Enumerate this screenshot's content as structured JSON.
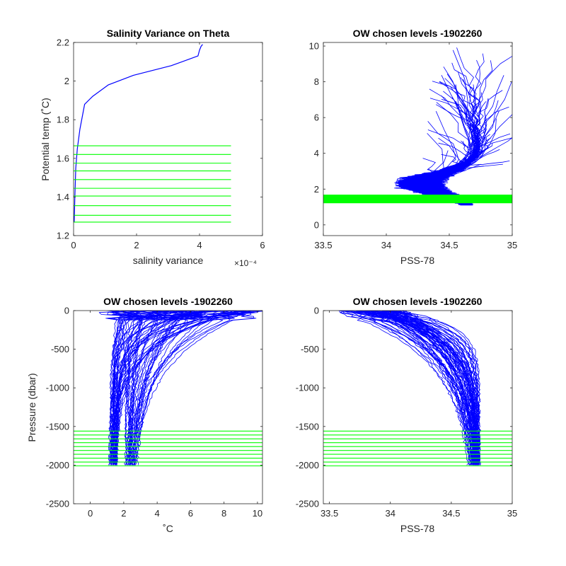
{
  "colors": {
    "profile": "#0000ff",
    "levels": "#00ff00",
    "axis": "#262626"
  },
  "chart_data": [
    {
      "id": "p1",
      "type": "line",
      "title": "Salinity Variance on Theta",
      "xlabel": "salinity variance",
      "ylabel": "Potential temp (˚C)",
      "x_exponent": "×10⁻⁴",
      "xlim": [
        0,
        6
      ],
      "ylim": [
        1.2,
        2.2
      ],
      "xticks": [
        0,
        2,
        4,
        6
      ],
      "yticks": [
        1.2,
        1.4,
        1.6,
        1.8,
        2.0,
        2.2
      ],
      "xtick_labels": [
        "0",
        "2",
        "4",
        "6"
      ],
      "ytick_labels": [
        "1.2",
        "1.4",
        "1.6",
        "1.8",
        "2",
        "2.2"
      ],
      "series": [
        {
          "x": [
            0.02,
            0.04,
            0.07,
            0.12,
            0.2,
            0.35,
            0.6,
            1.1,
            1.9,
            3.1,
            3.95,
            4.0,
            4.05,
            4.1
          ],
          "y": [
            1.27,
            1.4,
            1.55,
            1.65,
            1.75,
            1.88,
            1.92,
            1.98,
            2.03,
            2.08,
            2.13,
            2.16,
            2.18,
            2.19
          ]
        }
      ],
      "levels": {
        "values": [
          1.27,
          1.305,
          1.355,
          1.405,
          1.445,
          1.49,
          1.535,
          1.575,
          1.62,
          1.665
        ],
        "xrange": [
          0,
          5
        ]
      }
    },
    {
      "id": "p2",
      "type": "line",
      "title": "OW chosen levels -1902260",
      "xlabel": "PSS-78",
      "ylabel": "",
      "xlim": [
        33.5,
        35
      ],
      "ylim": [
        -0.6,
        10.2
      ],
      "xticks": [
        33.5,
        34,
        34.5,
        35
      ],
      "yticks": [
        0,
        2,
        4,
        6,
        8,
        10
      ],
      "xtick_labels": [
        "33.5",
        "34",
        "34.5",
        "35"
      ],
      "ytick_labels": [
        "0",
        "2",
        "4",
        "6",
        "8",
        "10"
      ],
      "levels": {
        "values": [
          1.25,
          1.3,
          1.35,
          1.4,
          1.45,
          1.5,
          1.55,
          1.6,
          1.65
        ],
        "xrange": [
          33.5,
          35
        ]
      }
    },
    {
      "id": "p3",
      "type": "line",
      "title": "OW chosen levels -1902260",
      "xlabel": "˚C",
      "ylabel": "Pressure (dbar)",
      "xlim": [
        -1,
        10.3
      ],
      "ylim": [
        -2500,
        0
      ],
      "xticks": [
        0,
        2,
        4,
        6,
        8,
        10
      ],
      "yticks": [
        -2500,
        -2000,
        -1500,
        -1000,
        -500,
        0
      ],
      "xtick_labels": [
        "0",
        "2",
        "4",
        "6",
        "8",
        "10"
      ],
      "ytick_labels": [
        "-2500",
        "-2000",
        "-1500",
        "-1000",
        "-500",
        "0"
      ],
      "levels": {
        "values": [
          -1560,
          -1610,
          -1660,
          -1710,
          -1760,
          -1810,
          -1860,
          -1910,
          -1960,
          -2010
        ],
        "xrange": [
          -1,
          10.3
        ]
      }
    },
    {
      "id": "p4",
      "type": "line",
      "title": "OW chosen levels -1902260",
      "xlabel": "PSS-78",
      "ylabel": "",
      "xlim": [
        33.45,
        35
      ],
      "ylim": [
        -2500,
        0
      ],
      "xticks": [
        33.5,
        34,
        34.5,
        35
      ],
      "yticks": [
        -2500,
        -2000,
        -1500,
        -1000,
        -500,
        0
      ],
      "xtick_labels": [
        "33.5",
        "34",
        "34.5",
        "35"
      ],
      "ytick_labels": [
        "-2500",
        "-2000",
        "-1500",
        "-1000",
        "-500",
        "0"
      ],
      "levels": {
        "values": [
          -1560,
          -1610,
          -1660,
          -1710,
          -1760,
          -1810,
          -1860,
          -1910,
          -1960,
          -2010
        ],
        "xrange": [
          33.45,
          35
        ]
      }
    }
  ]
}
